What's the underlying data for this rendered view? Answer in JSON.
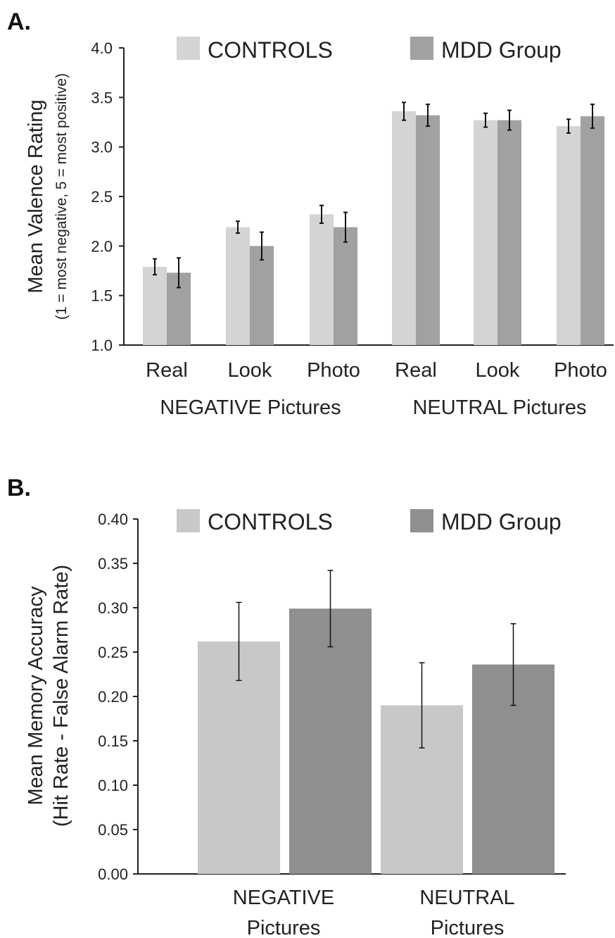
{
  "charts": [
    {
      "panel": "A.",
      "type": "bar",
      "ylabel": "Mean Valence Rating",
      "ylabel_sub": "(1 = most negative, 5 = most positive)",
      "ylim": [
        1.0,
        4.0
      ],
      "yticks": [
        "1.0",
        "1.5",
        "2.0",
        "2.5",
        "3.0",
        "3.5",
        "4.0"
      ],
      "categories": [
        "Real",
        "Look",
        "Photo",
        "Real",
        "Look",
        "Photo"
      ],
      "groups": [
        "NEGATIVE Pictures",
        "NEUTRAL Pictures"
      ],
      "series": [
        {
          "name": "CONTROLS",
          "color": "#d3d4d5",
          "values": [
            1.79,
            2.19,
            2.32,
            3.36,
            3.27,
            3.21
          ],
          "errors": [
            0.08,
            0.06,
            0.09,
            0.09,
            0.07,
            0.07
          ]
        },
        {
          "name": "MDD Group",
          "color": "#a0a1a1",
          "values": [
            1.73,
            2.0,
            2.19,
            3.32,
            3.27,
            3.31
          ],
          "errors": [
            0.15,
            0.14,
            0.15,
            0.11,
            0.1,
            0.12
          ]
        }
      ],
      "legend": "top"
    },
    {
      "panel": "B.",
      "type": "bar",
      "ylabel": "Mean Memory Accuracy",
      "ylabel_sub": "(Hit Rate - False Alarm Rate)",
      "ylim": [
        0.0,
        0.4
      ],
      "yticks": [
        "0.00",
        "0.05",
        "0.10",
        "0.15",
        "0.20",
        "0.25",
        "0.30",
        "0.35",
        "0.40"
      ],
      "categories": [
        "NEGATIVE Pictures",
        "NEUTRAL Pictures"
      ],
      "category_lines": [
        [
          "NEGATIVE",
          "Pictures"
        ],
        [
          "NEUTRAL",
          "Pictures"
        ]
      ],
      "series": [
        {
          "name": "CONTROLS",
          "color": "#c8c8c8",
          "values": [
            0.262,
            0.19
          ],
          "errors": [
            0.044,
            0.048
          ]
        },
        {
          "name": "MDD Group",
          "color": "#8f8f8f",
          "values": [
            0.299,
            0.236
          ],
          "errors": [
            0.043,
            0.046
          ]
        }
      ],
      "legend": "top"
    }
  ]
}
